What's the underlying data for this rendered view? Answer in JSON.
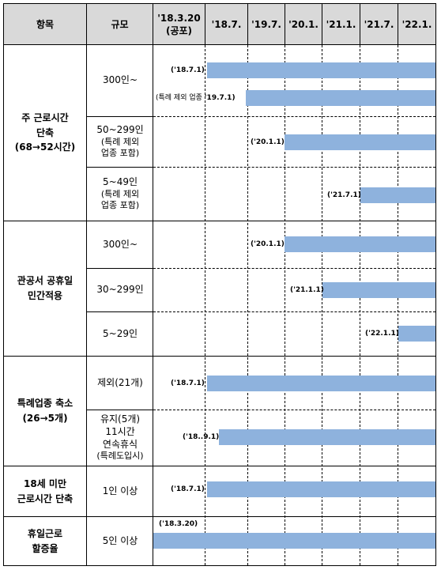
{
  "header": {
    "item": "항목",
    "scale": "규모",
    "dates": [
      "'18.3.20",
      "(공포)",
      "'18.7.",
      "'19.7.",
      "'20.1.",
      "'21.1.",
      "'21.7.",
      "'22.1."
    ]
  },
  "sections": {
    "s1": {
      "title": [
        "주 근로시간",
        "단축",
        "(68→52시간)"
      ],
      "rows": [
        {
          "scale": "300인~",
          "labels": [
            "('18.7.1)",
            "(특례 제외 업종",
            "'19.7.1)"
          ]
        },
        {
          "scale": "50~299인",
          "note": [
            "(특례 제외",
            "업종 포함)"
          ],
          "labels": [
            "('20.1.1)"
          ]
        },
        {
          "scale": "5~49인",
          "note": [
            "(특례 제외",
            "업종 포함)"
          ],
          "labels": [
            "('21.7.1)"
          ]
        }
      ]
    },
    "s2": {
      "title": [
        "관공서 공휴일",
        "민간적용"
      ],
      "rows": [
        {
          "scale": "300인~",
          "labels": [
            "('20.1.1)"
          ]
        },
        {
          "scale": "30~299인",
          "labels": [
            "('21.1.1)"
          ]
        },
        {
          "scale": "5~29인",
          "labels": [
            "('22.1.1)"
          ]
        }
      ]
    },
    "s3": {
      "title": [
        "특례업종 축소",
        "(26→5개)"
      ],
      "rows": [
        {
          "scale": "제외(21개)",
          "labels": [
            "('18.7.1)"
          ]
        },
        {
          "scale": [
            "유지(5개)",
            "11시간",
            "연속휴식"
          ],
          "note": [
            "(특례도입시)"
          ],
          "labels": [
            "('18..9.1)"
          ]
        }
      ]
    },
    "s4": {
      "title": [
        "18세 미만",
        "근로시간 단축"
      ],
      "rows": [
        {
          "scale": "1인 이상",
          "labels": [
            "('18.7.1)"
          ]
        }
      ]
    },
    "s5": {
      "title": [
        "휴일근로",
        "할증율"
      ],
      "rows": [
        {
          "scale": "5인 이상",
          "labels": [
            "('18.3.20)"
          ]
        }
      ]
    }
  },
  "colors": {
    "header_bg": "#d9d9d9",
    "bar": "#8eb2dd",
    "border": "#000000"
  }
}
